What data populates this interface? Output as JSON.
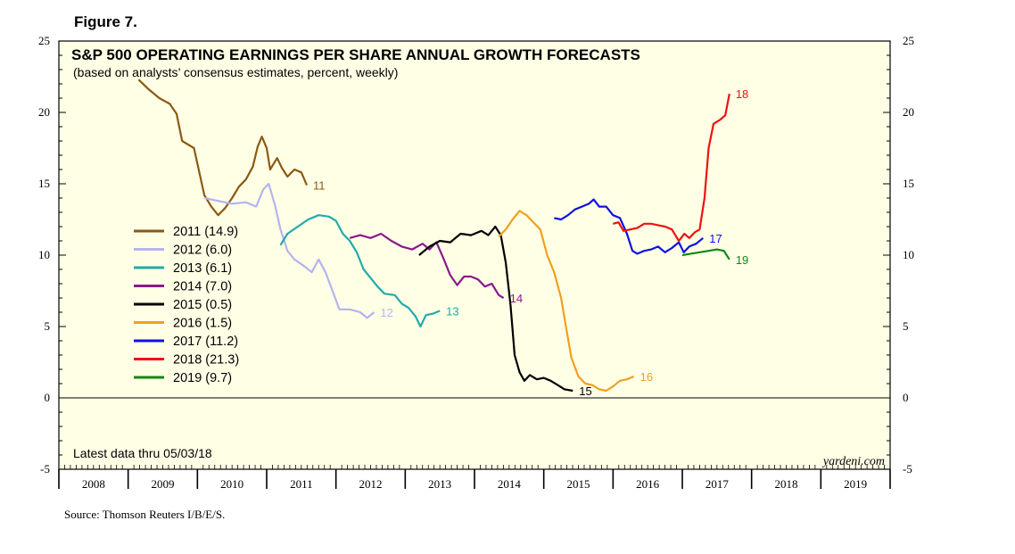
{
  "figure_label": "Figure 7.",
  "source": "Source: Thomson Reuters I/B/E/S.",
  "colors": {
    "plot_bg": "#ffffe6",
    "frame": "#000000"
  },
  "chart_data": {
    "type": "line",
    "title": "S&P 500 OPERATING EARNINGS PER SHARE ANNUAL  GROWTH FORECASTS",
    "subtitle": "(based on analysts’ consensus estimates, percent, weekly)",
    "xlabel": "",
    "ylabel": "",
    "ylim": [
      -5,
      25
    ],
    "yticks": [
      -5,
      0,
      5,
      10,
      15,
      20,
      25
    ],
    "ytick_labels": [
      "-5",
      "0",
      "5",
      "10",
      "15",
      "20",
      "25"
    ],
    "xlim": [
      2008.0,
      2020.0
    ],
    "year_labels": [
      "2008",
      "2009",
      "2010",
      "2011",
      "2012",
      "2013",
      "2014",
      "2015",
      "2016",
      "2017",
      "2018",
      "2019"
    ],
    "zero_line": true,
    "latest_note": "Latest data thru 05/03/18",
    "watermark": "yardeni.com",
    "legend_position": "left-center",
    "series": [
      {
        "name": "2011 (14.9)",
        "end_label": "11",
        "color": "#8a5a14",
        "points": [
          [
            2009.15,
            22.3
          ],
          [
            2009.3,
            21.6
          ],
          [
            2009.45,
            21.0
          ],
          [
            2009.6,
            20.6
          ],
          [
            2009.7,
            19.9
          ],
          [
            2009.78,
            18.0
          ],
          [
            2009.95,
            17.5
          ],
          [
            2010.1,
            14.2
          ],
          [
            2010.2,
            13.4
          ],
          [
            2010.3,
            12.8
          ],
          [
            2010.4,
            13.3
          ],
          [
            2010.5,
            14.0
          ],
          [
            2010.6,
            14.8
          ],
          [
            2010.7,
            15.3
          ],
          [
            2010.8,
            16.2
          ],
          [
            2010.87,
            17.6
          ],
          [
            2010.93,
            18.3
          ],
          [
            2011.0,
            17.5
          ],
          [
            2011.05,
            16.0
          ],
          [
            2011.15,
            16.8
          ],
          [
            2011.22,
            16.1
          ],
          [
            2011.3,
            15.5
          ],
          [
            2011.4,
            16.0
          ],
          [
            2011.5,
            15.8
          ],
          [
            2011.58,
            14.9
          ]
        ]
      },
      {
        "name": "2012 (6.0)",
        "end_label": "12",
        "color": "#b4b4f0",
        "points": [
          [
            2010.1,
            14.0
          ],
          [
            2010.3,
            13.8
          ],
          [
            2010.5,
            13.6
          ],
          [
            2010.7,
            13.7
          ],
          [
            2010.85,
            13.4
          ],
          [
            2010.95,
            14.6
          ],
          [
            2011.03,
            15.0
          ],
          [
            2011.12,
            13.5
          ],
          [
            2011.2,
            11.8
          ],
          [
            2011.3,
            10.3
          ],
          [
            2011.4,
            9.7
          ],
          [
            2011.55,
            9.2
          ],
          [
            2011.65,
            8.8
          ],
          [
            2011.75,
            9.7
          ],
          [
            2011.85,
            8.8
          ],
          [
            2011.95,
            7.5
          ],
          [
            2012.05,
            6.2
          ],
          [
            2012.2,
            6.2
          ],
          [
            2012.35,
            6.0
          ],
          [
            2012.45,
            5.6
          ],
          [
            2012.55,
            6.0
          ]
        ]
      },
      {
        "name": "2013 (6.1)",
        "end_label": "13",
        "color": "#22aaaa",
        "points": [
          [
            2011.2,
            10.7
          ],
          [
            2011.3,
            11.5
          ],
          [
            2011.45,
            12.0
          ],
          [
            2011.6,
            12.5
          ],
          [
            2011.75,
            12.8
          ],
          [
            2011.9,
            12.7
          ],
          [
            2012.0,
            12.4
          ],
          [
            2012.1,
            11.5
          ],
          [
            2012.2,
            11.0
          ],
          [
            2012.3,
            10.2
          ],
          [
            2012.4,
            9.0
          ],
          [
            2012.5,
            8.4
          ],
          [
            2012.6,
            7.8
          ],
          [
            2012.7,
            7.3
          ],
          [
            2012.85,
            7.2
          ],
          [
            2012.95,
            6.6
          ],
          [
            2013.05,
            6.3
          ],
          [
            2013.15,
            5.7
          ],
          [
            2013.22,
            5.0
          ],
          [
            2013.3,
            5.8
          ],
          [
            2013.4,
            5.9
          ],
          [
            2013.5,
            6.1
          ]
        ]
      },
      {
        "name": "2014 (7.0)",
        "end_label": "14",
        "color": "#8a1a8a",
        "points": [
          [
            2012.2,
            11.2
          ],
          [
            2012.35,
            11.4
          ],
          [
            2012.5,
            11.2
          ],
          [
            2012.65,
            11.5
          ],
          [
            2012.8,
            11.0
          ],
          [
            2012.95,
            10.6
          ],
          [
            2013.1,
            10.4
          ],
          [
            2013.25,
            10.8
          ],
          [
            2013.35,
            10.4
          ],
          [
            2013.45,
            10.9
          ],
          [
            2013.55,
            9.8
          ],
          [
            2013.65,
            8.6
          ],
          [
            2013.75,
            7.9
          ],
          [
            2013.85,
            8.5
          ],
          [
            2013.95,
            8.5
          ],
          [
            2014.05,
            8.3
          ],
          [
            2014.15,
            7.8
          ],
          [
            2014.25,
            8.0
          ],
          [
            2014.35,
            7.2
          ],
          [
            2014.42,
            7.0
          ]
        ]
      },
      {
        "name": "2015 (0.5)",
        "end_label": "15",
        "color": "#000000",
        "points": [
          [
            2013.2,
            10.0
          ],
          [
            2013.35,
            10.6
          ],
          [
            2013.5,
            11.0
          ],
          [
            2013.65,
            10.9
          ],
          [
            2013.8,
            11.5
          ],
          [
            2013.95,
            11.4
          ],
          [
            2014.1,
            11.7
          ],
          [
            2014.2,
            11.4
          ],
          [
            2014.3,
            12.0
          ],
          [
            2014.38,
            11.4
          ],
          [
            2014.45,
            9.5
          ],
          [
            2014.52,
            6.5
          ],
          [
            2014.58,
            3.0
          ],
          [
            2014.65,
            1.8
          ],
          [
            2014.72,
            1.2
          ],
          [
            2014.8,
            1.6
          ],
          [
            2014.9,
            1.3
          ],
          [
            2015.0,
            1.4
          ],
          [
            2015.1,
            1.2
          ],
          [
            2015.2,
            0.9
          ],
          [
            2015.3,
            0.6
          ],
          [
            2015.42,
            0.5
          ]
        ]
      },
      {
        "name": "2016 (1.5)",
        "end_label": "16",
        "color": "#f0a020",
        "points": [
          [
            2014.35,
            11.3
          ],
          [
            2014.45,
            11.8
          ],
          [
            2014.55,
            12.5
          ],
          [
            2014.65,
            13.1
          ],
          [
            2014.75,
            12.8
          ],
          [
            2014.85,
            12.3
          ],
          [
            2014.95,
            11.8
          ],
          [
            2015.05,
            10.0
          ],
          [
            2015.15,
            8.8
          ],
          [
            2015.25,
            7.0
          ],
          [
            2015.32,
            5.0
          ],
          [
            2015.4,
            2.8
          ],
          [
            2015.5,
            1.5
          ],
          [
            2015.6,
            1.0
          ],
          [
            2015.7,
            0.9
          ],
          [
            2015.8,
            0.6
          ],
          [
            2015.9,
            0.5
          ],
          [
            2016.0,
            0.8
          ],
          [
            2016.1,
            1.2
          ],
          [
            2016.2,
            1.3
          ],
          [
            2016.3,
            1.5
          ]
        ]
      },
      {
        "name": "2017 (11.2)",
        "end_label": "17",
        "color": "#1010e0",
        "points": [
          [
            2015.15,
            12.6
          ],
          [
            2015.25,
            12.5
          ],
          [
            2015.35,
            12.8
          ],
          [
            2015.45,
            13.2
          ],
          [
            2015.55,
            13.4
          ],
          [
            2015.65,
            13.6
          ],
          [
            2015.72,
            13.9
          ],
          [
            2015.8,
            13.4
          ],
          [
            2015.9,
            13.4
          ],
          [
            2016.0,
            12.8
          ],
          [
            2016.1,
            12.6
          ],
          [
            2016.2,
            11.5
          ],
          [
            2016.28,
            10.3
          ],
          [
            2016.35,
            10.1
          ],
          [
            2016.45,
            10.3
          ],
          [
            2016.55,
            10.4
          ],
          [
            2016.65,
            10.6
          ],
          [
            2016.75,
            10.2
          ],
          [
            2016.85,
            10.5
          ],
          [
            2016.95,
            10.9
          ],
          [
            2017.02,
            10.2
          ],
          [
            2017.1,
            10.6
          ],
          [
            2017.2,
            10.8
          ],
          [
            2017.3,
            11.2
          ]
        ]
      },
      {
        "name": "2018 (21.3)",
        "end_label": "18",
        "color": "#ee1111",
        "points": [
          [
            2016.0,
            12.2
          ],
          [
            2016.08,
            12.3
          ],
          [
            2016.15,
            11.7
          ],
          [
            2016.25,
            11.8
          ],
          [
            2016.35,
            11.9
          ],
          [
            2016.45,
            12.2
          ],
          [
            2016.55,
            12.2
          ],
          [
            2016.65,
            12.1
          ],
          [
            2016.75,
            12.0
          ],
          [
            2016.85,
            11.8
          ],
          [
            2016.95,
            11.0
          ],
          [
            2017.03,
            11.5
          ],
          [
            2017.1,
            11.2
          ],
          [
            2017.18,
            11.6
          ],
          [
            2017.25,
            11.8
          ],
          [
            2017.32,
            14.0
          ],
          [
            2017.38,
            17.5
          ],
          [
            2017.45,
            19.2
          ],
          [
            2017.55,
            19.5
          ],
          [
            2017.62,
            19.8
          ],
          [
            2017.68,
            21.3
          ]
        ]
      },
      {
        "name": "2019 (9.7)",
        "end_label": "19",
        "color": "#118811",
        "points": [
          [
            2017.0,
            10.0
          ],
          [
            2017.12,
            10.1
          ],
          [
            2017.25,
            10.2
          ],
          [
            2017.38,
            10.3
          ],
          [
            2017.5,
            10.4
          ],
          [
            2017.6,
            10.3
          ],
          [
            2017.68,
            9.7
          ]
        ]
      }
    ]
  }
}
